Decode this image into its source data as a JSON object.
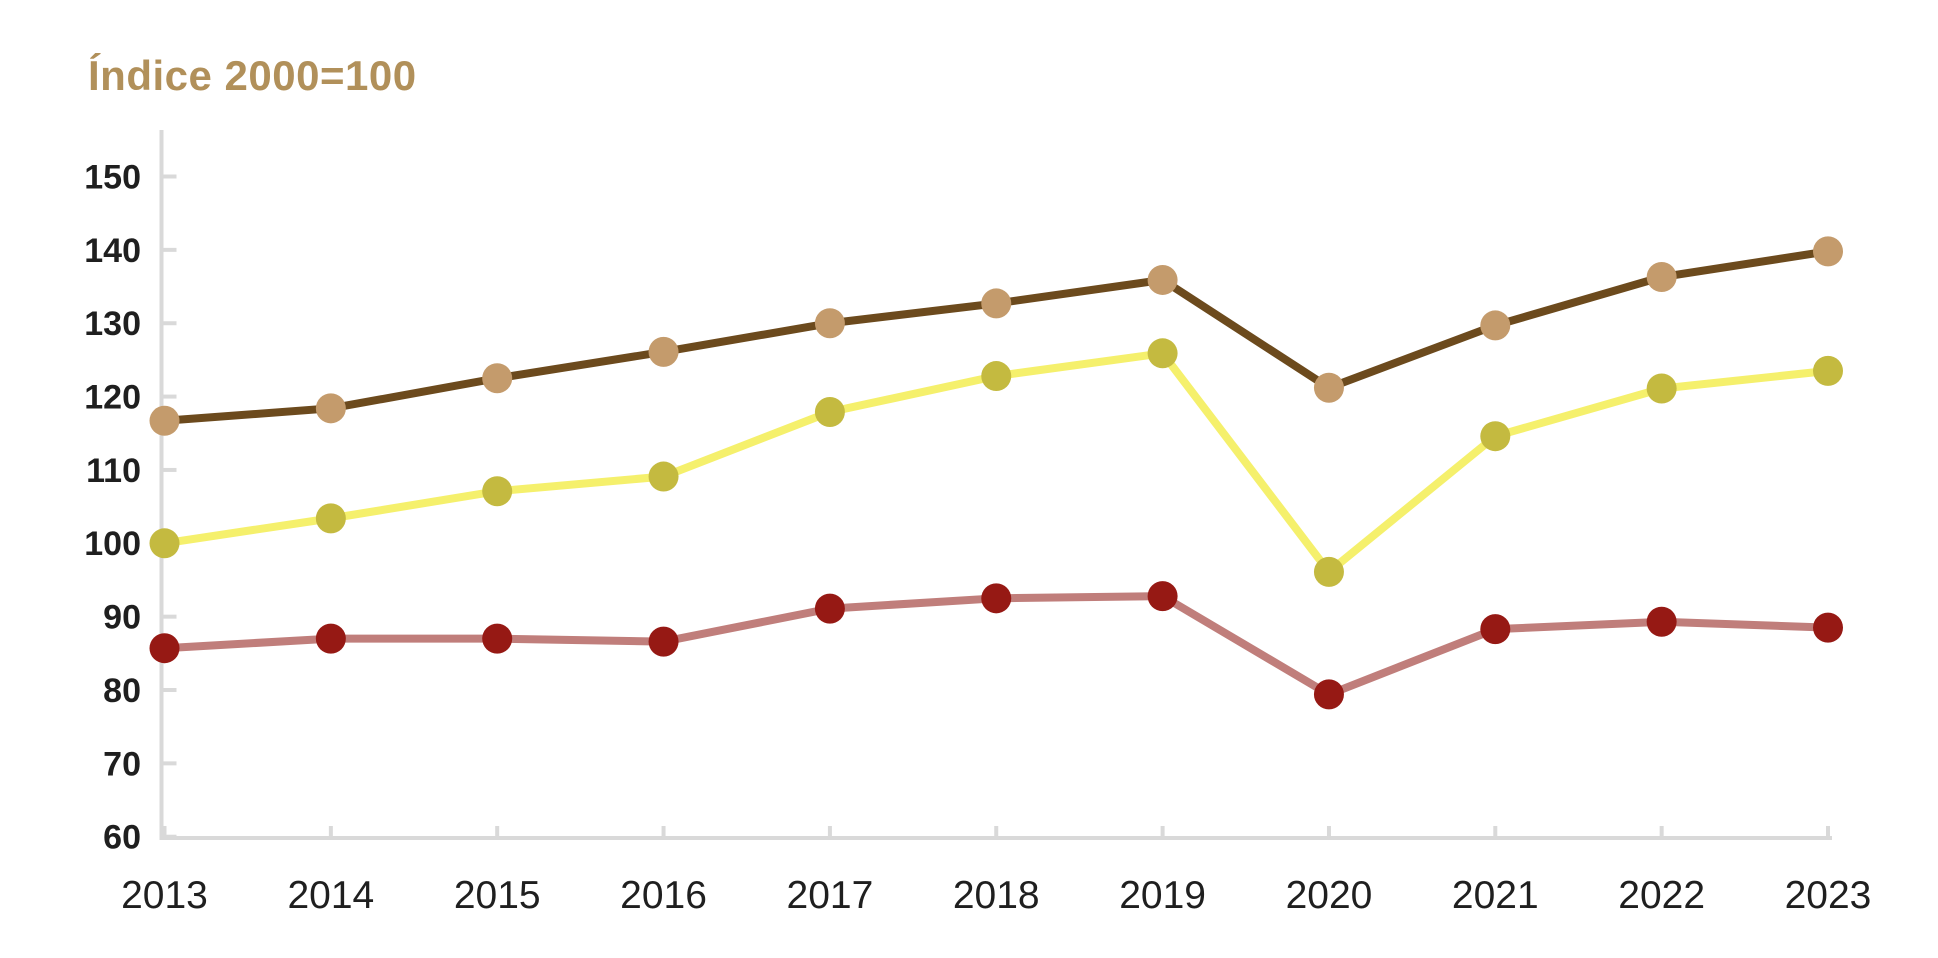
{
  "title": "Índice 2000=100",
  "colors": {
    "title": "#B1905A",
    "axis": "#D9D9D9",
    "tick_labels": "#1F1F1F",
    "background": "#FFFFFF"
  },
  "chart_data": {
    "type": "line",
    "title": "Índice 2000=100",
    "xlabel": "",
    "ylabel": "Índice 2000=100",
    "x": [
      2013,
      2014,
      2015,
      2016,
      2017,
      2018,
      2019,
      2020,
      2021,
      2022,
      2023
    ],
    "xticks": [
      "2013",
      "2014",
      "2015",
      "2016",
      "2017",
      "2018",
      "2019",
      "2020",
      "2021",
      "2022",
      "2023"
    ],
    "ylim": [
      60,
      150
    ],
    "ytick_step": 10,
    "yticks": [
      150,
      140,
      130,
      120,
      110,
      100,
      90,
      80,
      70,
      60
    ],
    "grid": false,
    "legend": "none",
    "series": [
      {
        "name": "brown",
        "line_color": "#6C4A1D",
        "marker_color": "#C49B6C",
        "values": [
          116.7,
          118.4,
          122.5,
          126.1,
          130.0,
          132.7,
          135.9,
          121.2,
          129.7,
          136.3,
          139.8
        ]
      },
      {
        "name": "yellow",
        "line_color": "#F5F06C",
        "marker_color": "#C4BA40",
        "values": [
          100.0,
          103.4,
          107.1,
          109.1,
          117.9,
          122.8,
          125.9,
          96.1,
          114.6,
          121.1,
          123.5
        ]
      },
      {
        "name": "red",
        "line_color": "#C07E7B",
        "marker_color": "#961914",
        "values": [
          85.7,
          87.0,
          87.0,
          86.6,
          91.1,
          92.5,
          92.8,
          79.4,
          88.3,
          89.3,
          88.5
        ]
      }
    ]
  }
}
